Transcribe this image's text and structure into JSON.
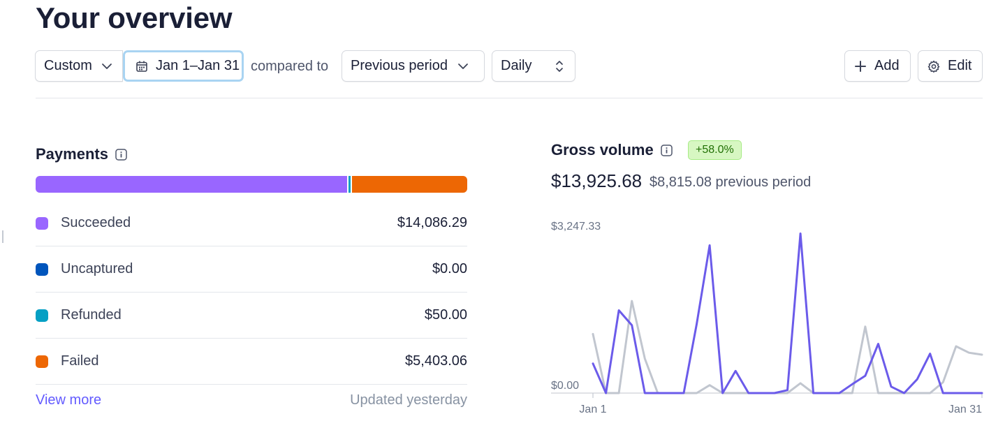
{
  "page": {
    "title": "Your overview"
  },
  "toolbar": {
    "range_label": "Custom",
    "date_label": "Jan 1–Jan 31",
    "compared_text": "compared to",
    "comparison_label": "Previous period",
    "interval_label": "Daily",
    "add_label": "Add",
    "edit_label": "Edit"
  },
  "payments": {
    "title": "Payments",
    "items": [
      {
        "label": "Succeeded",
        "value": "$14,086.29",
        "amount": 14086.29,
        "color": "#9966ff"
      },
      {
        "label": "Uncaptured",
        "value": "$0.00",
        "amount": 0,
        "color": "#0055bc"
      },
      {
        "label": "Refunded",
        "value": "$50.00",
        "amount": 50,
        "color": "#06a0c4"
      },
      {
        "label": "Failed",
        "value": "$5,403.06",
        "amount": 5403.06,
        "color": "#ed6704"
      }
    ],
    "view_more": "View more",
    "updated": "Updated yesterday"
  },
  "gross_volume": {
    "title": "Gross volume",
    "badge": "+58.0%",
    "total": "$13,925.68",
    "previous": "$8,815.08 previous period",
    "colors": {
      "current": "#6b5bea",
      "previous": "#c1c6cf",
      "accent_badge": "#d7f7c2"
    }
  },
  "chart_data": {
    "type": "line",
    "x": [
      1,
      2,
      3,
      4,
      5,
      6,
      7,
      8,
      9,
      10,
      11,
      12,
      13,
      14,
      15,
      16,
      17,
      18,
      19,
      20,
      21,
      22,
      23,
      24,
      25,
      26,
      27,
      28,
      29,
      30,
      31
    ],
    "x_tick_labels": [
      "Jan 1",
      "Jan 31"
    ],
    "ylim": [
      0,
      3247.33
    ],
    "y_tick_labels": [
      "$3,247.33",
      "$0.00"
    ],
    "grid": false,
    "series": [
      {
        "values": [
          600,
          0,
          1680,
          1380,
          0,
          0,
          0,
          0,
          1400,
          3000,
          0,
          450,
          0,
          0,
          0,
          60,
          3240,
          0,
          0,
          0,
          180,
          350,
          1000,
          130,
          0,
          280,
          800,
          0,
          0,
          0,
          0
        ]
      },
      {
        "values": [
          1200,
          0,
          0,
          1870,
          700,
          0,
          0,
          0,
          0,
          160,
          0,
          0,
          0,
          0,
          0,
          0,
          200,
          0,
          0,
          0,
          0,
          1350,
          0,
          0,
          0,
          0,
          0,
          220,
          950,
          820,
          780
        ]
      }
    ]
  }
}
